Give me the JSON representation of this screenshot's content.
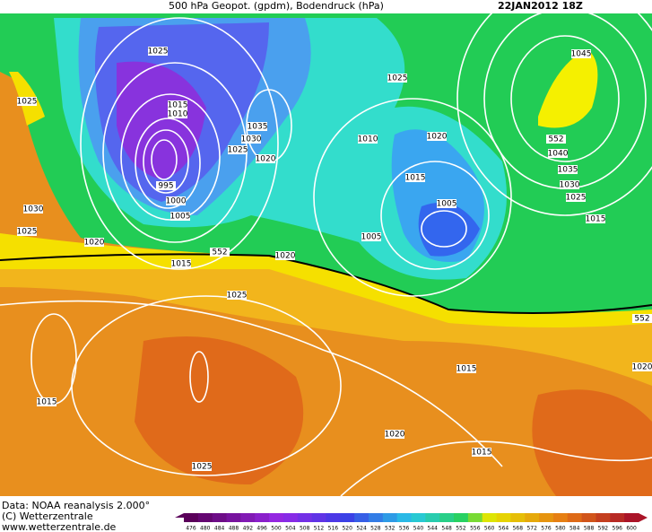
{
  "header": {
    "title": "500 hPa Geopot. (gpdm), Bodendruck (hPa)",
    "date": "22JAN2012 18Z"
  },
  "isobar_labels": [
    "1025",
    "1025",
    "1015",
    "1010",
    "1035",
    "1030",
    "1025",
    "1020",
    "995",
    "1000",
    "1005",
    "1030",
    "1025",
    "1020",
    "1015",
    "552",
    "1020",
    "1025",
    "1025",
    "1010",
    "1020",
    "1015",
    "1005",
    "1005",
    "1045",
    "552",
    "1040",
    "1035",
    "1030",
    "1025",
    "1015",
    "552",
    "1020",
    "1015",
    "1015",
    "1020",
    "1015",
    "1025"
  ],
  "credits": [
    "Data: NOAA reanalysis 2.000°",
    "(C) Wetterzentrale",
    "www.wetterzentrale.de"
  ],
  "colorbar": {
    "labels": [
      476,
      480,
      484,
      488,
      492,
      496,
      500,
      504,
      508,
      512,
      516,
      520,
      524,
      528,
      532,
      536,
      540,
      544,
      548,
      552,
      556,
      560,
      564,
      568,
      572,
      576,
      580,
      584,
      588,
      592,
      596,
      600
    ]
  }
}
